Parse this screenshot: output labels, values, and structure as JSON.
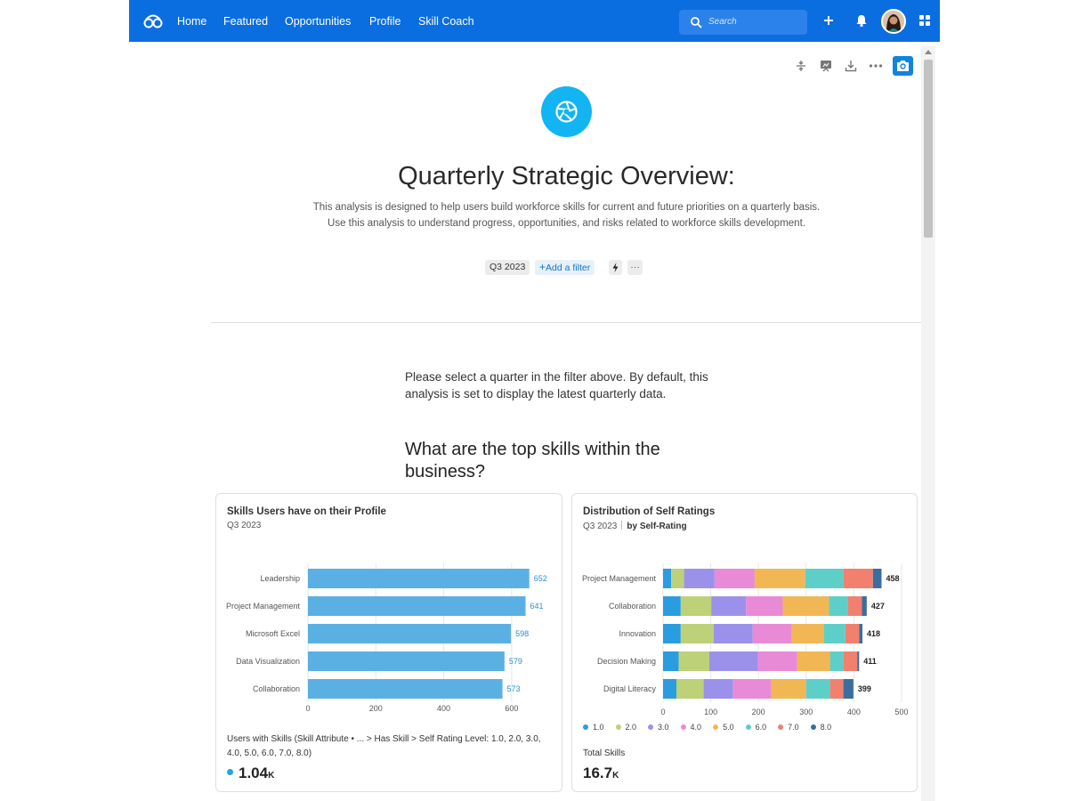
{
  "nav": {
    "links": [
      "Home",
      "Featured",
      "Opportunities",
      "Profile",
      "Skill Coach"
    ],
    "search_placeholder": "Search"
  },
  "header": {
    "title": "Quarterly Strategic Overview:",
    "description": "This analysis is designed to help users build workforce skills for current and future priorities on a quarterly basis. Use this analysis to understand progress, opportunities, and risks related to workforce skills development.",
    "filter_quarter": "Q3 2023",
    "add_filter": "Add a filter",
    "more": "···"
  },
  "intro_text": "Please select a quarter in the filter above. By default, this analysis is set to display the latest quarterly data.",
  "section_heading": "What are the top skills within the business?",
  "colors": {
    "nav": "#0b6ee0",
    "accent": "#12b5f2",
    "bar": "#5ab0e3"
  },
  "cards": {
    "left": {
      "title": "Skills Users have on their Profile",
      "subtitle": "Q3 2023",
      "metric_label": "Users with Skills (Skill Attribute • ... > Has Skill > Self Rating Level: 1.0, 2.0, 3.0, 4.0, 5.0, 6.0, 7.0, 8.0)",
      "metric_value": "1.04",
      "metric_unit": "K"
    },
    "right": {
      "title": "Distribution of Self Ratings",
      "subtitle": "Q3 2023",
      "subtitle_by": "by Self-Rating",
      "metric_label": "Total Skills",
      "metric_value": "16.7",
      "metric_unit": "K"
    }
  },
  "chart_data": [
    {
      "type": "bar",
      "orientation": "horizontal",
      "categories": [
        "Leadership",
        "Project Management",
        "Microsoft Excel",
        "Data Visualization",
        "Collaboration"
      ],
      "values": [
        652,
        641,
        598,
        579,
        573
      ],
      "xlim": [
        0,
        700
      ],
      "xticks": [
        0,
        200,
        400,
        600
      ],
      "grid": true,
      "data_labels": true,
      "color": "#5ab0e3"
    },
    {
      "type": "bar",
      "orientation": "horizontal",
      "stacked": true,
      "categories": [
        "Project Management",
        "Collaboration",
        "Innovation",
        "Decision Making",
        "Digital Literacy"
      ],
      "totals": [
        458,
        427,
        418,
        411,
        399
      ],
      "xlim": [
        0,
        500
      ],
      "xticks": [
        0,
        100,
        200,
        300,
        400,
        500
      ],
      "legend_position": "bottom",
      "series": [
        {
          "name": "1.0",
          "color": "#2a9ce0",
          "values": [
            17,
            37,
            37,
            33,
            28
          ]
        },
        {
          "name": "2.0",
          "color": "#bdd178",
          "values": [
            27,
            64,
            69,
            64,
            57
          ]
        },
        {
          "name": "3.0",
          "color": "#9c91ea",
          "values": [
            64,
            73,
            82,
            102,
            62
          ]
        },
        {
          "name": "4.0",
          "color": "#e98ad7",
          "values": [
            84,
            77,
            82,
            82,
            80
          ]
        },
        {
          "name": "5.0",
          "color": "#f2b755",
          "values": [
            106,
            97,
            67,
            69,
            73
          ]
        },
        {
          "name": "6.0",
          "color": "#5dcfc8",
          "values": [
            80,
            40,
            45,
            28,
            50
          ]
        },
        {
          "name": "7.0",
          "color": "#f2806e",
          "values": [
            62,
            29,
            29,
            29,
            28
          ]
        },
        {
          "name": "8.0",
          "color": "#3b6ea0",
          "values": [
            18,
            10,
            7,
            4,
            21
          ]
        }
      ]
    }
  ]
}
